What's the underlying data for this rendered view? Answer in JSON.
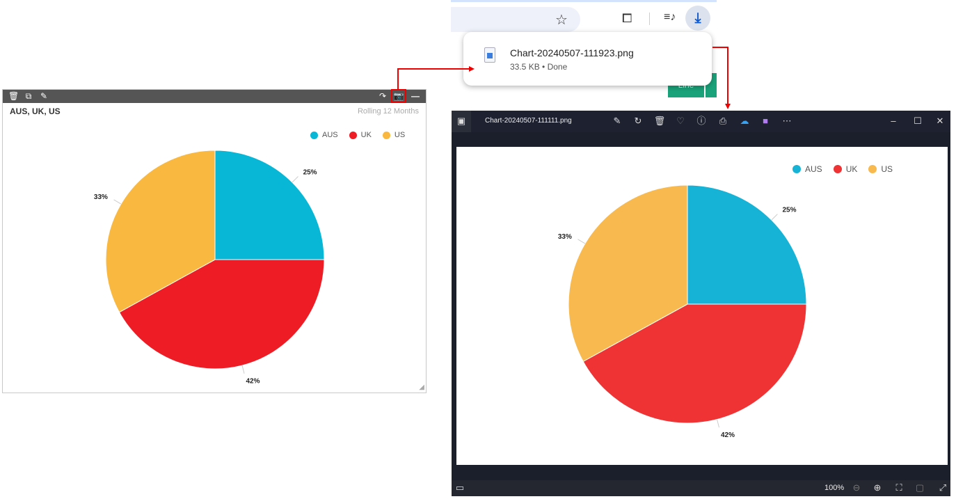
{
  "widget": {
    "title": "AUS, UK, US",
    "subtitle": "Rolling 12 Months",
    "toolbar_icons": [
      "trash-icon",
      "copy-icon",
      "edit-icon",
      "share-icon",
      "camera-icon",
      "minimize-icon"
    ]
  },
  "chart_data": {
    "type": "pie",
    "categories": [
      "AUS",
      "UK",
      "US"
    ],
    "values": [
      25,
      42,
      33
    ],
    "labels": [
      "25%",
      "42%",
      "33%"
    ],
    "colors": [
      "#08b7d6",
      "#ee1c25",
      "#f9b840"
    ],
    "legend": "top-right"
  },
  "viewer_chart_colors": [
    "#17b3d6",
    "#ef3234",
    "#f8ba4f"
  ],
  "browser": {
    "download": {
      "filename": "Chart-20240507-111923.png",
      "status": "33.5 KB • Done"
    },
    "green_button": "Line"
  },
  "viewer": {
    "filename": "Chart-20240507-111111.png",
    "zoom": "100%"
  }
}
